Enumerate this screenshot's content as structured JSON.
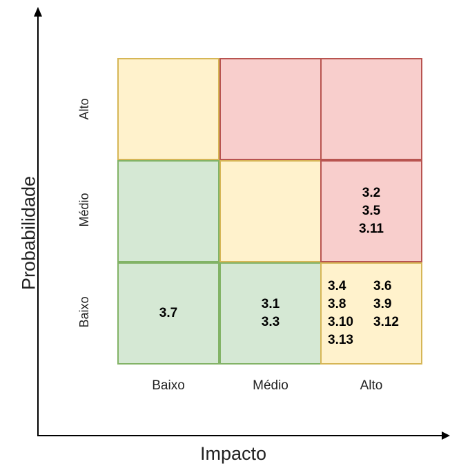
{
  "axes": {
    "x_title": "Impacto",
    "y_title": "Probabilidade",
    "x_levels": [
      "Baixo",
      "Médio",
      "Alto"
    ],
    "y_levels": [
      "Alto",
      "Médio",
      "Baixo"
    ]
  },
  "matrix": {
    "row_alto": {
      "baixo": [],
      "medio": [],
      "alto": []
    },
    "row_medio": {
      "baixo": [],
      "medio": [],
      "alto": [
        "3.2",
        "3.5",
        "3.11"
      ]
    },
    "row_baixo": {
      "baixo": [
        "3.7"
      ],
      "medio": [
        "3.1",
        "3.3"
      ],
      "alto": [
        "3.4",
        "3.6",
        "3.8",
        "3.9",
        "3.10",
        "3.12",
        "3.13"
      ]
    }
  },
  "colors": {
    "low": {
      "fill": "#d5e8d4",
      "stroke": "#82b366"
    },
    "medium": {
      "fill": "#fff2cc",
      "stroke": "#d6b656"
    },
    "high": {
      "fill": "#f8cecc",
      "stroke": "#b85450"
    }
  }
}
